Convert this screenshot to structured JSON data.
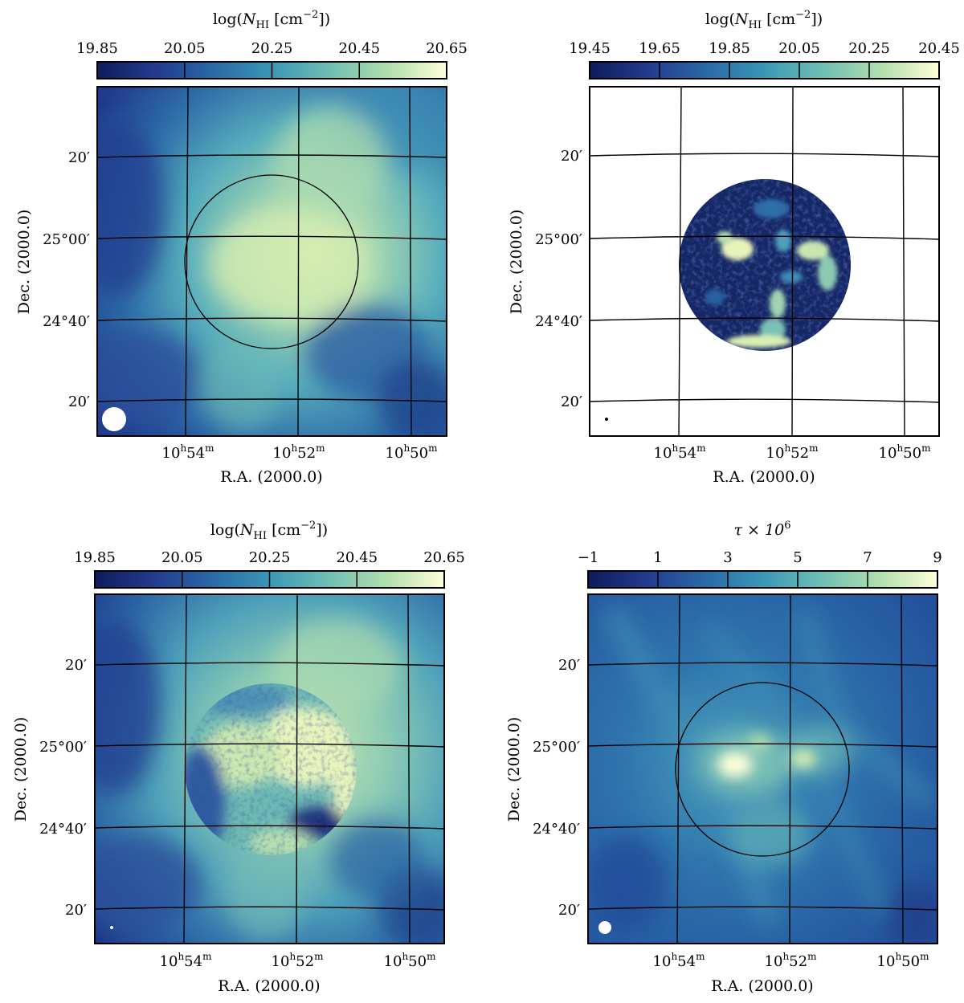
{
  "chart_data": [
    {
      "type": "heatmap",
      "panel": "top-left",
      "title": "log(N_HI [cm^-2])",
      "title_parts": {
        "pre": "log(",
        "italic": "N",
        "sub": "HI",
        "post": " [cm",
        "sup": "−2",
        "end": "])"
      },
      "colorbar": {
        "range": [
          19.85,
          20.65
        ],
        "ticks": [
          "19.85",
          "20.05",
          "20.25",
          "20.45",
          "20.65"
        ]
      },
      "xlabel": "R.A. (2000.0)",
      "ylabel": "Dec. (2000.0)",
      "ra_ticks": [
        {
          "h": "10",
          "m": "54"
        },
        {
          "h": "10",
          "m": "52"
        },
        {
          "h": "10",
          "m": "50"
        }
      ],
      "dec_ticks": [
        "20′",
        "25°00′",
        "24°40′",
        "20′"
      ],
      "data_extent": "full",
      "circle": true,
      "background": "smooth single-dish column density, peak near circle center",
      "beam": "large"
    },
    {
      "type": "heatmap",
      "panel": "top-right",
      "title": "log(N_HI [cm^-2])",
      "title_parts": {
        "pre": "log(",
        "italic": "N",
        "sub": "HI",
        "post": " [cm",
        "sup": "−2",
        "end": "])"
      },
      "colorbar": {
        "range": [
          19.45,
          20.45
        ],
        "ticks": [
          "19.45",
          "19.65",
          "19.85",
          "20.05",
          "20.25",
          "20.45"
        ]
      },
      "xlabel": "R.A. (2000.0)",
      "ylabel": "Dec. (2000.0)",
      "ra_ticks": [
        {
          "h": "10",
          "m": "54"
        },
        {
          "h": "10",
          "m": "52"
        },
        {
          "h": "10",
          "m": "50"
        }
      ],
      "dec_ticks": [
        "20′",
        "25°00′",
        "24°40′",
        "20′"
      ],
      "data_extent": "circle-only",
      "circle": false,
      "background": "interferometer map inside primary beam, clumpy",
      "beam": "tiny"
    },
    {
      "type": "heatmap",
      "panel": "bottom-left",
      "title": "log(N_HI [cm^-2])",
      "title_parts": {
        "pre": "log(",
        "italic": "N",
        "sub": "HI",
        "post": " [cm",
        "sup": "−2",
        "end": "])"
      },
      "colorbar": {
        "range": [
          19.85,
          20.65
        ],
        "ticks": [
          "19.85",
          "20.05",
          "20.25",
          "20.45",
          "20.65"
        ]
      },
      "xlabel": "R.A. (2000.0)",
      "ylabel": "Dec. (2000.0)",
      "ra_ticks": [
        {
          "h": "10",
          "m": "54"
        },
        {
          "h": "10",
          "m": "52"
        },
        {
          "h": "10",
          "m": "50"
        }
      ],
      "dec_ticks": [
        "20′",
        "25°00′",
        "24°40′",
        "20′"
      ],
      "data_extent": "full",
      "circle": false,
      "background": "combined single-dish + interferometer map",
      "beam": "tiny"
    },
    {
      "type": "heatmap",
      "panel": "bottom-right",
      "title": "τ × 10^6",
      "title_parts": {
        "pre": "τ × 10",
        "sup": "6"
      },
      "colorbar": {
        "range": [
          -1,
          9
        ],
        "ticks": [
          "−1",
          "1",
          "3",
          "5",
          "7",
          "9"
        ]
      },
      "xlabel": "R.A. (2000.0)",
      "ylabel": "Dec. (2000.0)",
      "ra_ticks": [
        {
          "h": "10",
          "m": "54"
        },
        {
          "h": "10",
          "m": "52"
        },
        {
          "h": "10",
          "m": "50"
        }
      ],
      "dec_ticks": [
        "20′",
        "25°00′",
        "24°40′",
        "20′"
      ],
      "data_extent": "full",
      "circle": true,
      "background": "dust optical depth, filamentary",
      "beam": "small"
    }
  ],
  "colors": {
    "cmap": [
      "#0f1c5c",
      "#243b8f",
      "#2a6ba8",
      "#3b97b6",
      "#6fbfb3",
      "#b4dfae",
      "#ffffd8"
    ],
    "grid": "#000000",
    "beam": "#ffffff"
  }
}
